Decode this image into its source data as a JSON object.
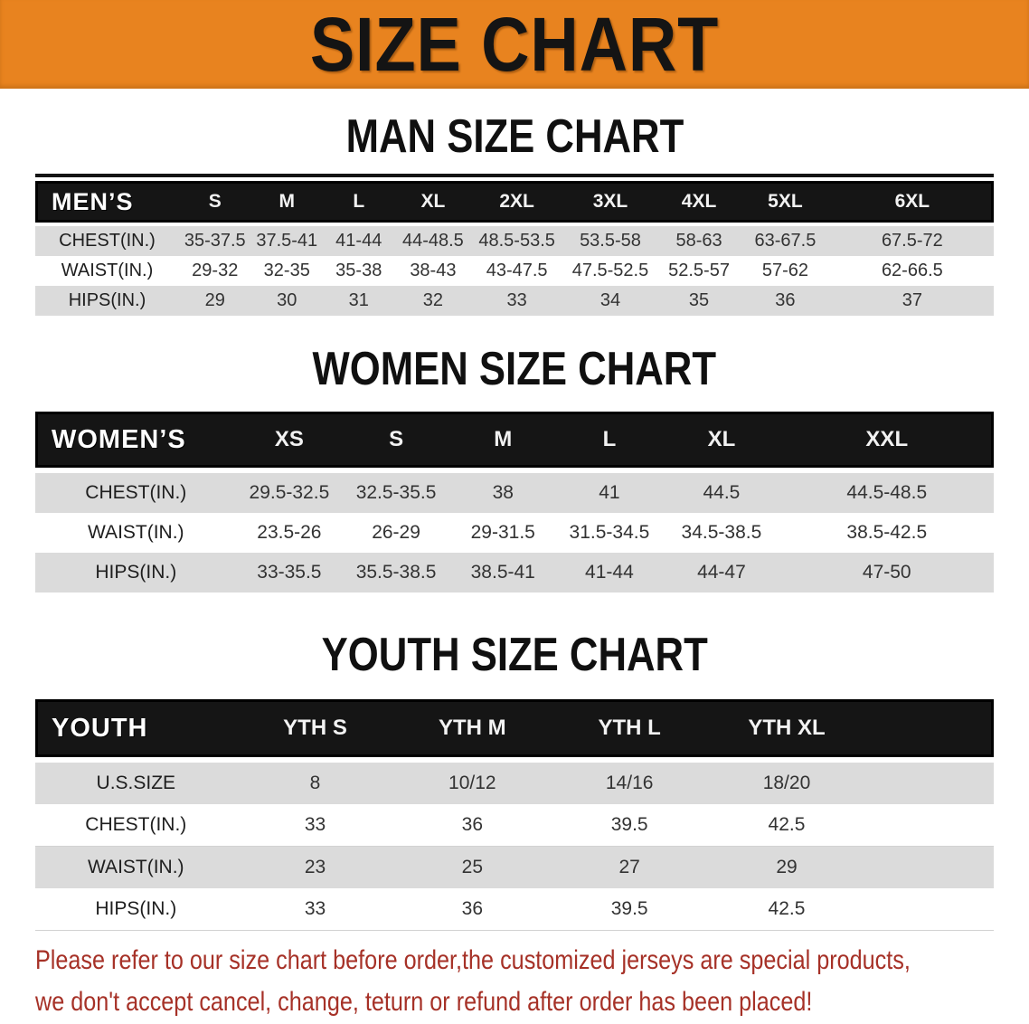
{
  "banner": {
    "title": "SIZE CHART",
    "bg_color": "#E8831F",
    "text_color": "#141414"
  },
  "sections": [
    {
      "id": "men",
      "heading": "MAN SIZE CHART",
      "header_label": "MEN’S",
      "columns": [
        "S",
        "M",
        "L",
        "XL",
        "2XL",
        "3XL",
        "4XL",
        "5XL",
        "6XL"
      ],
      "col_widths": [
        "15%",
        "7.5%",
        "7.5%",
        "7.5%",
        "8%",
        "9.5%",
        "10%",
        "8.5%",
        "9.5%",
        "17%"
      ],
      "rows": [
        {
          "label": "CHEST(IN.)",
          "values": [
            "35-37.5",
            "37.5-41",
            "41-44",
            "44-48.5",
            "48.5-53.5",
            "53.5-58",
            "58-63",
            "63-67.5",
            "67.5-72"
          ]
        },
        {
          "label": "WAIST(IN.)",
          "values": [
            "29-32",
            "32-35",
            "35-38",
            "38-43",
            "43-47.5",
            "47.5-52.5",
            "52.5-57",
            "57-62",
            "62-66.5"
          ]
        },
        {
          "label": "HIPS(IN.)",
          "values": [
            "29",
            "30",
            "31",
            "32",
            "33",
            "34",
            "35",
            "36",
            "37"
          ]
        }
      ]
    },
    {
      "id": "women",
      "heading": "WOMEN SIZE CHART",
      "header_label": "WOMEN’S",
      "columns": [
        "XS",
        "S",
        "M",
        "L",
        "XL",
        "XXL"
      ],
      "col_widths": [
        "21%",
        "11%",
        "11.3%",
        "11%",
        "11.2%",
        "12.2%",
        "22.3%"
      ],
      "rows": [
        {
          "label": "CHEST(IN.)",
          "values": [
            "29.5-32.5",
            "32.5-35.5",
            "38",
            "41",
            "44.5",
            "44.5-48.5"
          ]
        },
        {
          "label": "WAIST(IN.)",
          "values": [
            "23.5-26",
            "26-29",
            "29-31.5",
            "31.5-34.5",
            "34.5-38.5",
            "38.5-42.5"
          ]
        },
        {
          "label": "HIPS(IN.)",
          "values": [
            "33-35.5",
            "35.5-38.5",
            "38.5-41",
            "41-44",
            "44-47",
            "47-50"
          ]
        }
      ]
    },
    {
      "id": "youth",
      "heading": "YOUTH SIZE CHART",
      "header_label": "YOUTH",
      "columns": [
        "YTH S",
        "YTH M",
        "YTH L",
        "YTH XL"
      ],
      "col_widths": [
        "21%",
        "16.4%",
        "16.4%",
        "16.4%",
        "16.4%",
        "13.4%"
      ],
      "rows": [
        {
          "label": "U.S.SIZE",
          "values": [
            "8",
            "10/12",
            "14/16",
            "18/20"
          ]
        },
        {
          "label": "CHEST(IN.)",
          "values": [
            "33",
            "36",
            "39.5",
            "42.5"
          ]
        },
        {
          "label": "WAIST(IN.)",
          "values": [
            "23",
            "25",
            "27",
            "29"
          ]
        },
        {
          "label": "HIPS(IN.)",
          "values": [
            "33",
            "36",
            "39.5",
            "42.5"
          ]
        }
      ]
    }
  ],
  "footer": {
    "lines": [
      "Please refer to our size chart before order,the customized jerseys are special products,",
      "we don't accept cancel, change, teturn or refund after order has been placed!"
    ],
    "text_color": "#A63127"
  },
  "colors": {
    "banner_orange": "#E8831F",
    "header_black": "#151515",
    "row_gray": "#DBDBDB",
    "row_white": "#FFFFFF"
  }
}
